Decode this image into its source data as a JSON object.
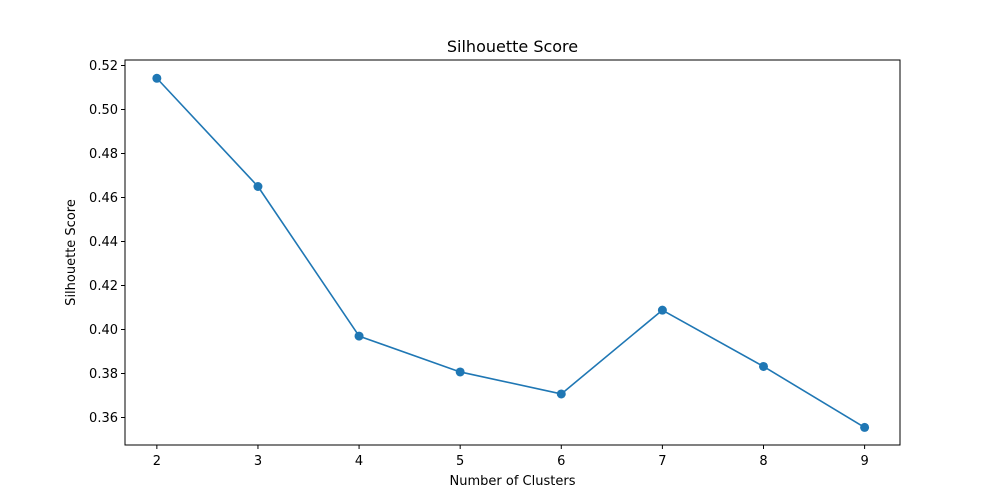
{
  "chart_data": {
    "type": "line",
    "title": "Silhouette Score",
    "xlabel": "Number of Clusters",
    "ylabel": "Silhouette Score",
    "x": [
      2,
      3,
      4,
      5,
      6,
      7,
      8,
      9
    ],
    "series": [
      {
        "values": [
          0.5142,
          0.465,
          0.397,
          0.3807,
          0.3707,
          0.4088,
          0.3832,
          0.3555
        ],
        "color": "#1f77b4"
      }
    ],
    "xlim": [
      1.685,
      9.35
    ],
    "ylim": [
      0.3475,
      0.5225
    ],
    "xticks": [
      2,
      3,
      4,
      5,
      6,
      7,
      8,
      9
    ],
    "xtick_labels": [
      "2",
      "3",
      "4",
      "5",
      "6",
      "7",
      "8",
      "9"
    ],
    "yticks": [
      0.36,
      0.38,
      0.4,
      0.42,
      0.44,
      0.46,
      0.48,
      0.5,
      0.52
    ],
    "ytick_labels": [
      "0.36",
      "0.38",
      "0.40",
      "0.42",
      "0.44",
      "0.46",
      "0.48",
      "0.50",
      "0.52"
    ],
    "grid": false,
    "legend": false
  }
}
